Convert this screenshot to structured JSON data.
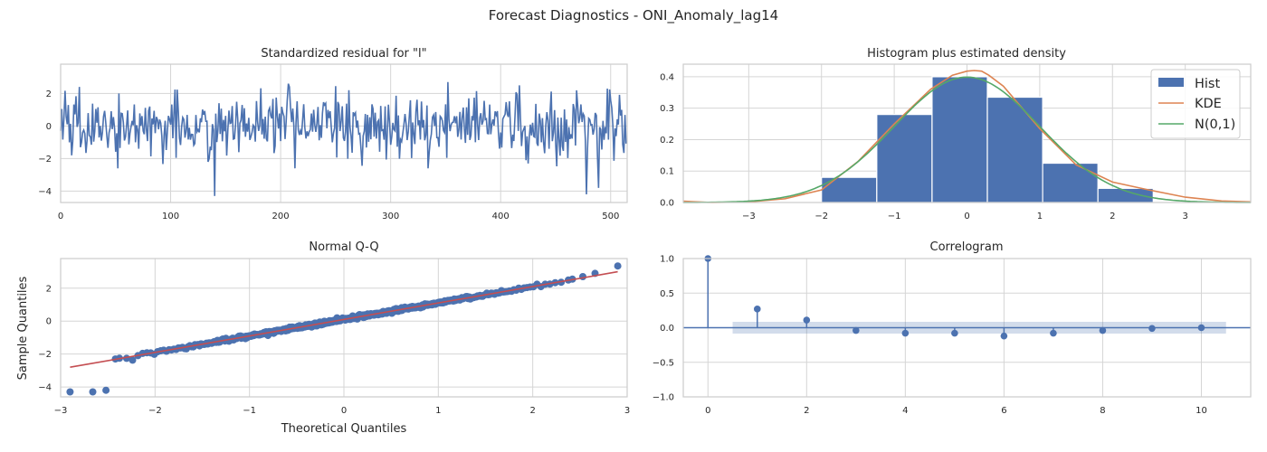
{
  "figure": {
    "title": "Forecast Diagnostics - ONI_Anomaly_lag14"
  },
  "colors": {
    "blue": "#4c72b0",
    "orange": "#dd8452",
    "green": "#55a868",
    "red": "#c44e52",
    "band": "#4c72b0"
  },
  "chart_data": [
    {
      "id": "residual",
      "type": "line",
      "title": "Standardized residual for \"l\"",
      "xlabel": "",
      "ylabel": "",
      "xlim": [
        0,
        515
      ],
      "ylim": [
        -4.7,
        3.8
      ],
      "xticks": [
        0,
        100,
        200,
        300,
        400,
        500
      ],
      "yticks": [
        -4,
        -2,
        0,
        2
      ],
      "grid": true,
      "n_points": 515,
      "notable_values": [
        {
          "x": 10,
          "y": -1.8
        },
        {
          "x": 17,
          "y": 2.4
        },
        {
          "x": 140,
          "y": -4.3
        },
        {
          "x": 208,
          "y": 2.4
        },
        {
          "x": 262,
          "y": 2.2
        },
        {
          "x": 352,
          "y": 2.7
        },
        {
          "x": 417,
          "y": 2.5
        },
        {
          "x": 425,
          "y": -2.3
        },
        {
          "x": 478,
          "y": -4.2
        },
        {
          "x": 489,
          "y": -3.8
        },
        {
          "x": 497,
          "y": 2.3
        }
      ]
    },
    {
      "id": "histogram",
      "type": "bar",
      "title": "Histogram plus estimated density",
      "xlabel": "",
      "ylabel": "",
      "xlim": [
        -3.9,
        3.9
      ],
      "ylim": [
        0,
        0.44
      ],
      "xticks": [
        -3,
        -2,
        -1,
        0,
        1,
        2,
        3
      ],
      "yticks": [
        0.0,
        0.1,
        0.2,
        0.3,
        0.4
      ],
      "grid": true,
      "legend_position": "top-right",
      "bins": [
        {
          "left": -2.0,
          "right": -1.24,
          "height": 0.08
        },
        {
          "left": -1.24,
          "right": -0.48,
          "height": 0.28
        },
        {
          "left": -0.48,
          "right": 0.28,
          "height": 0.4
        },
        {
          "left": 0.28,
          "right": 1.04,
          "height": 0.335
        },
        {
          "left": 1.04,
          "right": 1.8,
          "height": 0.125
        },
        {
          "left": 1.8,
          "right": 2.56,
          "height": 0.045
        }
      ],
      "kde": {
        "x": [
          -3.9,
          -3.5,
          -3.0,
          -2.5,
          -2.0,
          -1.5,
          -1.0,
          -0.5,
          -0.2,
          0.0,
          0.1,
          0.2,
          0.3,
          0.5,
          1.0,
          1.5,
          2.0,
          2.5,
          3.0,
          3.5,
          3.9
        ],
        "y": [
          0.004,
          0.0,
          0.002,
          0.012,
          0.04,
          0.13,
          0.25,
          0.36,
          0.405,
          0.418,
          0.42,
          0.418,
          0.405,
          0.37,
          0.235,
          0.12,
          0.065,
          0.04,
          0.017,
          0.005,
          0.002
        ]
      },
      "series": [
        {
          "name": "Hist",
          "kind": "bar"
        },
        {
          "name": "KDE",
          "kind": "line"
        },
        {
          "name": "N(0,1)",
          "kind": "line"
        }
      ]
    },
    {
      "id": "qq",
      "type": "scatter",
      "title": "Normal Q-Q",
      "xlabel": "Theoretical Quantiles",
      "ylabel": "Sample Quantiles",
      "xlim": [
        -3,
        3
      ],
      "ylim": [
        -4.6,
        3.8
      ],
      "xticks": [
        -3,
        -2,
        -1,
        0,
        1,
        2,
        3
      ],
      "yticks": [
        -4,
        -2,
        0,
        2
      ],
      "grid": true,
      "n_points": 515,
      "reference_line": {
        "x": [
          -2.9,
          2.9
        ],
        "y": [
          -2.8,
          3.0
        ]
      },
      "outliers": [
        {
          "x": -2.9,
          "y": -4.3
        },
        {
          "x": -2.66,
          "y": -4.3
        },
        {
          "x": -2.52,
          "y": -4.2
        },
        {
          "x": -2.42,
          "y": -2.3
        },
        {
          "x": 2.42,
          "y": 2.55
        },
        {
          "x": 2.53,
          "y": 2.7
        },
        {
          "x": 2.66,
          "y": 2.9
        },
        {
          "x": 2.9,
          "y": 3.35
        }
      ]
    },
    {
      "id": "acf",
      "type": "scatter",
      "title": "Correlogram",
      "xlabel": "",
      "ylabel": "",
      "xlim": [
        -0.5,
        11
      ],
      "ylim": [
        -1.0,
        1.0
      ],
      "xticks": [
        0,
        2,
        4,
        6,
        8,
        10
      ],
      "yticks": [
        -1.0,
        -0.5,
        0.0,
        0.5,
        1.0
      ],
      "grid": true,
      "lags": [
        0,
        1,
        2,
        3,
        4,
        5,
        6,
        7,
        8,
        9,
        10
      ],
      "values": [
        1.0,
        0.27,
        0.11,
        -0.04,
        -0.08,
        -0.08,
        -0.12,
        -0.08,
        -0.04,
        -0.01,
        0.0
      ],
      "confidence_band": {
        "x": [
          0.5,
          10.5
        ],
        "lower": -0.085,
        "upper": 0.085
      }
    }
  ]
}
